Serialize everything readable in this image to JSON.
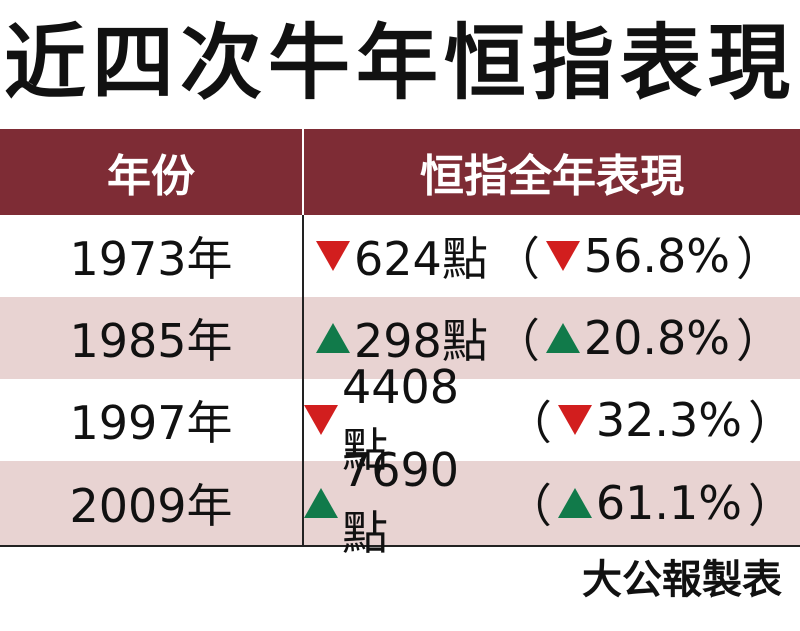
{
  "title": "近四次牛年恒指表現",
  "table": {
    "headers": {
      "year": "年份",
      "performance": "恒指全年表現"
    },
    "rows": [
      {
        "year": "1973年",
        "points_direction": "down",
        "points": "624點",
        "open_paren": "（",
        "pct_direction": "down",
        "percent": "56.8%",
        "close_paren": "）"
      },
      {
        "year": "1985年",
        "points_direction": "up",
        "points": "298點",
        "open_paren": "（",
        "pct_direction": "up",
        "percent": "20.8%",
        "close_paren": "）"
      },
      {
        "year": "1997年",
        "points_direction": "down",
        "points": "4408點",
        "open_paren": "（",
        "pct_direction": "down",
        "percent": "32.3%",
        "close_paren": "）"
      },
      {
        "year": "2009年",
        "points_direction": "up",
        "points": "7690點",
        "open_paren": "（",
        "pct_direction": "up",
        "percent": "61.1%",
        "close_paren": "）"
      }
    ]
  },
  "source": "大公報製表",
  "colors": {
    "header_bg": "#7e2c35",
    "row_shade": "#e8d3d2",
    "down": "#d21e1e",
    "up": "#117a4a"
  }
}
